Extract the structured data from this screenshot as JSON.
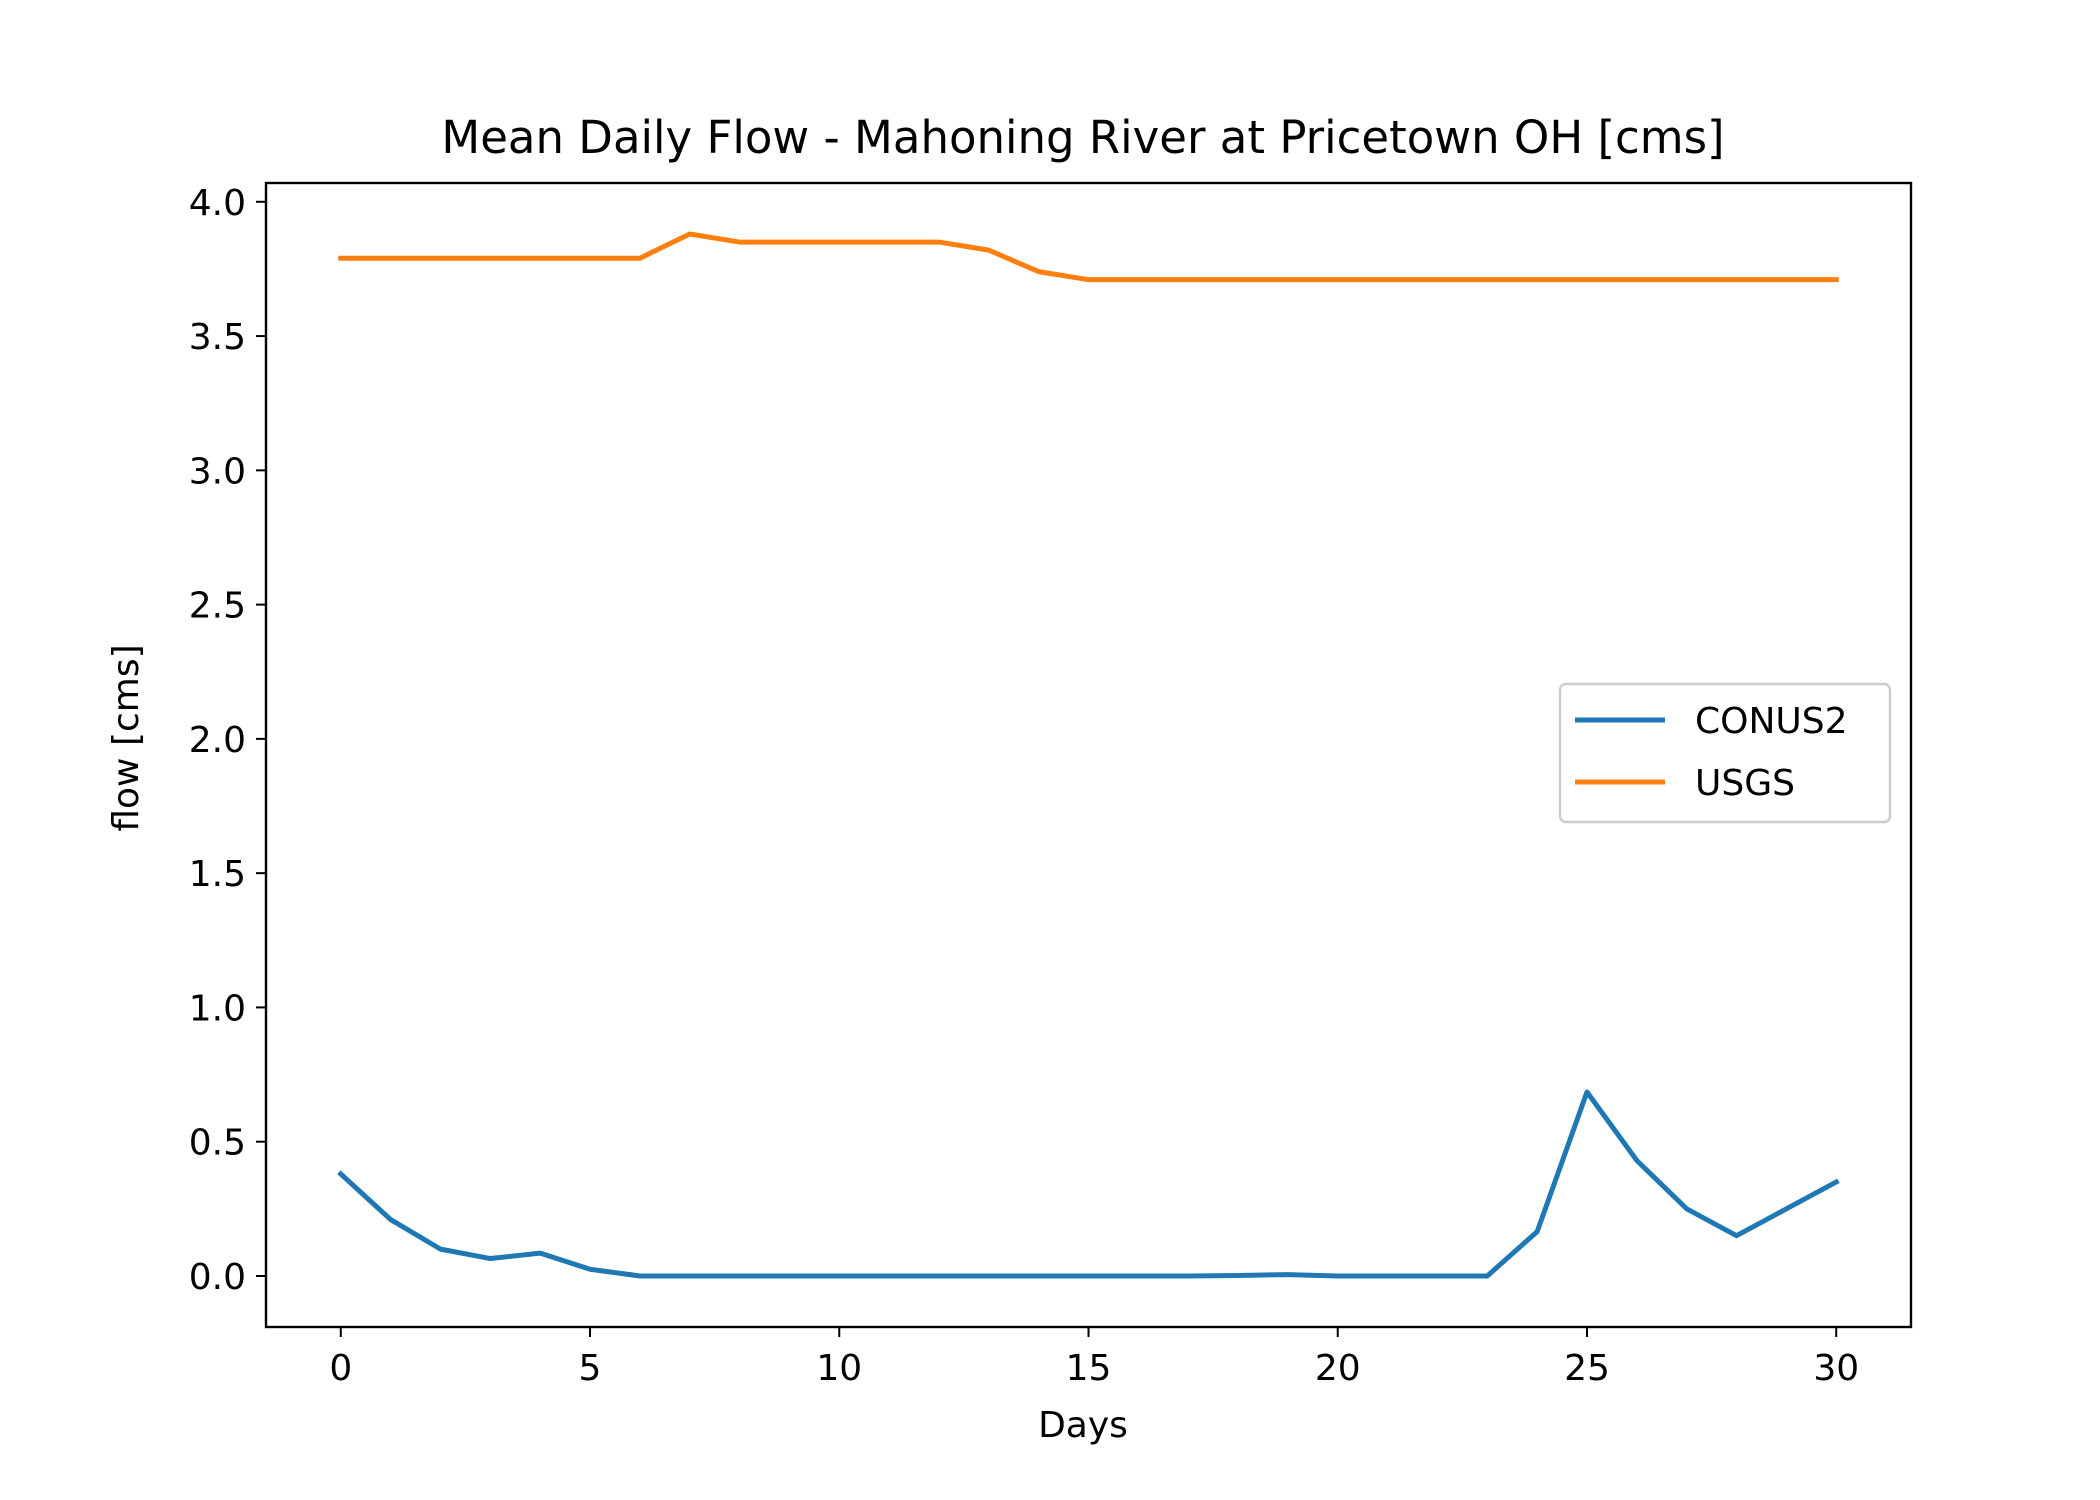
{
  "chart_data": {
    "type": "line",
    "title": "Mean Daily Flow - Mahoning River at Pricetown OH [cms]",
    "xlabel": "Days",
    "ylabel": "flow [cms]",
    "xlim": [
      -1.5,
      31.5
    ],
    "ylim": [
      -0.19,
      4.07
    ],
    "xticks": [
      0,
      5,
      10,
      15,
      20,
      25,
      30
    ],
    "xtick_labels": [
      "0",
      "5",
      "10",
      "15",
      "20",
      "25",
      "30"
    ],
    "yticks": [
      0.0,
      0.5,
      1.0,
      1.5,
      2.0,
      2.5,
      3.0,
      3.5,
      4.0
    ],
    "ytick_labels": [
      "0.0",
      "0.5",
      "1.0",
      "1.5",
      "2.0",
      "2.5",
      "3.0",
      "3.5",
      "4.0"
    ],
    "grid": false,
    "legend_position": "center-right",
    "x": [
      0,
      1,
      2,
      3,
      4,
      5,
      6,
      7,
      8,
      9,
      10,
      11,
      12,
      13,
      14,
      15,
      16,
      17,
      18,
      19,
      20,
      21,
      22,
      23,
      24,
      25,
      26,
      27,
      28,
      29,
      30
    ],
    "series": [
      {
        "name": "CONUS2",
        "color": "#1f77b4",
        "values": [
          0.38,
          0.21,
          0.1,
          0.065,
          0.085,
          0.025,
          0.0,
          0.0,
          0.0,
          0.0,
          0.0,
          0.0,
          0.0,
          0.0,
          0.0,
          0.0,
          0.0,
          0.0,
          0.002,
          0.005,
          0.0,
          0.0,
          0.0,
          0.0,
          0.165,
          0.685,
          0.43,
          0.25,
          0.15,
          0.25,
          0.35
        ]
      },
      {
        "name": "USGS",
        "color": "#ff7f0e",
        "values": [
          3.79,
          3.79,
          3.79,
          3.79,
          3.79,
          3.79,
          3.79,
          3.88,
          3.85,
          3.85,
          3.85,
          3.85,
          3.85,
          3.82,
          3.74,
          3.71,
          3.71,
          3.71,
          3.71,
          3.71,
          3.71,
          3.71,
          3.71,
          3.71,
          3.71,
          3.71,
          3.71,
          3.71,
          3.71,
          3.71,
          3.71
        ]
      }
    ]
  }
}
